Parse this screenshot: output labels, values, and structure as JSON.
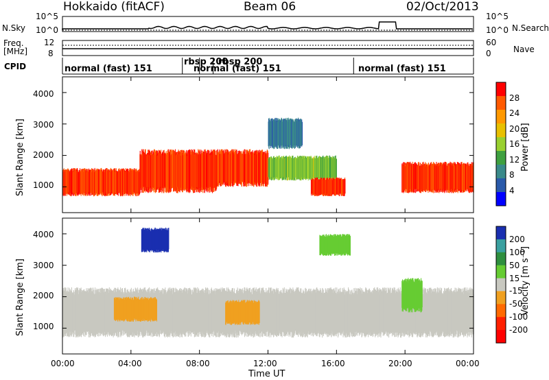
{
  "header": {
    "station": "Hokkaido (fitACF)",
    "beam": "Beam 06",
    "date": "02/Oct/2013"
  },
  "top_panels": {
    "nsky_label": "N.Sky",
    "nsearch_label": "N.Search",
    "noise_ticks_left": [
      "10^5",
      "10^0"
    ],
    "noise_ticks_right": [
      "10^5",
      "10^0"
    ],
    "freq_label_line1": "Freq.",
    "freq_label_line2": "[MHz]",
    "freq_ticks": [
      "12",
      "8"
    ],
    "nave_label": "Nave",
    "nave_ticks": [
      "60",
      "0"
    ],
    "cpid_label": "CPID",
    "cpid_segments": [
      {
        "label": "normal (fast) 151",
        "start_hour": 0
      },
      {
        "label": "rbsp 200",
        "start_hour": 7.0
      },
      {
        "label": "normal (fast) 151",
        "start_hour": 8.0
      },
      {
        "label": "rbsp 200",
        "start_hour": 8.8
      },
      {
        "label": "normal (fast) 151",
        "start_hour": 17.0
      }
    ]
  },
  "axes": {
    "ylabel": "Slant Range [km]",
    "xlabel": "Time UT",
    "x_ticks": [
      "00:00",
      "04:00",
      "08:00",
      "12:00",
      "16:00",
      "20:00",
      "00:00"
    ],
    "y_ticks": [
      "1000",
      "2000",
      "3000",
      "4000"
    ]
  },
  "power_colorbar": {
    "label": "Power [dB]",
    "ticks": [
      "28",
      "24",
      "20",
      "16",
      "12",
      "8",
      "4"
    ],
    "colors": [
      "#ff0000",
      "#ff5a00",
      "#ff9900",
      "#e8c000",
      "#99d030",
      "#3fa040",
      "#3a8a8a",
      "#2a5aaa",
      "#0000ff"
    ]
  },
  "velocity_colorbar": {
    "label": "Velocity [m s⁻¹]",
    "ticks": [
      "200",
      "100",
      "50",
      "15",
      "-15",
      "-50",
      "-100",
      "-200"
    ],
    "colors": [
      "#1a2fb0",
      "#3aa0a0",
      "#2f8f3f",
      "#66cc33",
      "#c8c8c0",
      "#f0a020",
      "#ff6a00",
      "#ff2000",
      "#ff0000"
    ]
  },
  "chart_data": {
    "type": "heatmap",
    "title": "Hokkaido (fitACF) Beam 06 02/Oct/2013",
    "xlabel": "Time UT",
    "ylabel": "Slant Range [km]",
    "xlim_hours": [
      0,
      24
    ],
    "ylim_km": [
      180,
      4500
    ],
    "panels": [
      {
        "name": "Power",
        "unit": "dB",
        "range": [
          0,
          30
        ],
        "regions": [
          {
            "t0": 0.0,
            "t1": 4.5,
            "r0": 700,
            "r1": 1600,
            "value": 28
          },
          {
            "t0": 4.5,
            "t1": 9.0,
            "r0": 800,
            "r1": 2200,
            "value": 28
          },
          {
            "t0": 9.0,
            "t1": 12.0,
            "r0": 1000,
            "r1": 2200,
            "value": 28
          },
          {
            "t0": 12.0,
            "t1": 16.0,
            "r0": 1200,
            "r1": 2000,
            "value": 14
          },
          {
            "t0": 14.5,
            "t1": 16.5,
            "r0": 700,
            "r1": 1300,
            "value": 28
          },
          {
            "t0": 12.0,
            "t1": 14.0,
            "r0": 2200,
            "r1": 3200,
            "value": 6
          },
          {
            "t0": 19.8,
            "t1": 24.0,
            "r0": 800,
            "r1": 1800,
            "value": 28
          }
        ]
      },
      {
        "name": "Velocity",
        "unit": "m/s",
        "range": [
          -200,
          200
        ],
        "regions": [
          {
            "t0": 0.0,
            "t1": 24.0,
            "r0": 700,
            "r1": 2300,
            "value": 0
          },
          {
            "t0": 3.0,
            "t1": 5.5,
            "r0": 1200,
            "r1": 2000,
            "value": -50
          },
          {
            "t0": 9.5,
            "t1": 11.5,
            "r0": 1100,
            "r1": 1900,
            "value": -50
          },
          {
            "t0": 19.8,
            "t1": 21.0,
            "r0": 1500,
            "r1": 2600,
            "value": 40
          },
          {
            "t0": 4.6,
            "t1": 6.2,
            "r0": 3400,
            "r1": 4200,
            "value": 200
          },
          {
            "t0": 15.0,
            "t1": 16.8,
            "r0": 3300,
            "r1": 4000,
            "value": 40
          }
        ]
      }
    ],
    "noise_search_level": 1.0,
    "frequency_mhz": 10.5,
    "nave": 20
  }
}
